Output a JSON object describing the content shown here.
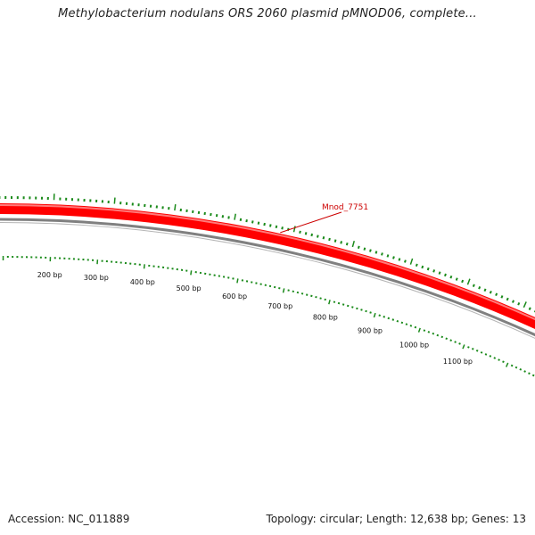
{
  "title": "Methylobacterium nodulans ORS 2060 plasmid pMNOD06, complete...",
  "footer": {
    "accession": "Accession: NC_011889",
    "summary": "Topology: circular; Length: 12,638 bp; Genes: 13"
  },
  "map": {
    "colors": {
      "gene": "#ff0000",
      "gene_label": "#cc0000",
      "backbone": "#808080",
      "tick": "#1a8a1a",
      "label_line": "#cc0000"
    },
    "gene": {
      "name": "Mnod_7751",
      "icon": "gene-arc"
    },
    "scale_labels": [
      "200 bp",
      "300 bp",
      "400 bp",
      "500 bp",
      "600 bp",
      "700 bp",
      "800 bp",
      "900 bp",
      "1000 bp",
      "1100 bp"
    ]
  }
}
